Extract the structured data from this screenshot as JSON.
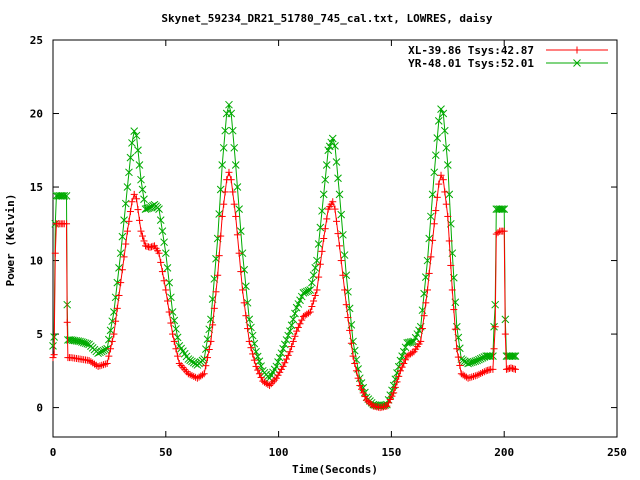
{
  "chart_data": {
    "type": "line",
    "title": "Skynet_59234_DR21_51780_745_cal.txt, LOWRES, daisy",
    "xlabel": "Time(Seconds)",
    "ylabel": "Power (Kelvin)",
    "xlim": [
      0,
      250
    ],
    "ylim": [
      -2,
      25
    ],
    "xticks": [
      0,
      50,
      100,
      150,
      200,
      250
    ],
    "yticks": [
      0,
      5,
      10,
      15,
      20,
      25
    ],
    "grid": false,
    "legend_position": "top-right",
    "series": [
      {
        "name": "XL-39.86 Tsys:42.87",
        "color": "#ff0000",
        "marker": "plus",
        "points": [
          [
            0,
            3.4
          ],
          [
            0.5,
            3.6
          ],
          [
            1,
            10.5
          ],
          [
            1.5,
            12.5
          ],
          [
            3,
            12.5
          ],
          [
            5,
            12.5
          ],
          [
            6,
            12.5
          ],
          [
            6.3,
            5.8
          ],
          [
            6.6,
            3.4
          ],
          [
            8,
            3.4
          ],
          [
            12,
            3.3
          ],
          [
            16,
            3.2
          ],
          [
            20,
            2.8
          ],
          [
            24,
            3.0
          ],
          [
            27,
            5.0
          ],
          [
            30,
            8.5
          ],
          [
            33,
            12.0
          ],
          [
            35,
            14.0
          ],
          [
            36,
            14.5
          ],
          [
            37,
            14.2
          ],
          [
            39,
            12.0
          ],
          [
            41,
            11.0
          ],
          [
            43,
            10.9
          ],
          [
            45,
            11.0
          ],
          [
            47,
            10.5
          ],
          [
            50,
            8.0
          ],
          [
            53,
            5.0
          ],
          [
            56,
            3.0
          ],
          [
            60,
            2.3
          ],
          [
            64,
            2.0
          ],
          [
            67,
            2.3
          ],
          [
            70,
            4.5
          ],
          [
            73,
            9.0
          ],
          [
            75,
            13.0
          ],
          [
            77,
            15.5
          ],
          [
            78,
            16.0
          ],
          [
            79,
            15.5
          ],
          [
            81,
            13.0
          ],
          [
            84,
            8.0
          ],
          [
            87,
            4.5
          ],
          [
            90,
            2.8
          ],
          [
            93,
            1.8
          ],
          [
            96,
            1.5
          ],
          [
            99,
            2.0
          ],
          [
            102,
            2.8
          ],
          [
            105,
            3.8
          ],
          [
            108,
            5.2
          ],
          [
            111,
            6.2
          ],
          [
            114,
            6.5
          ],
          [
            117,
            8.0
          ],
          [
            120,
            11.5
          ],
          [
            122,
            13.5
          ],
          [
            124,
            14.0
          ],
          [
            125,
            13.5
          ],
          [
            127,
            11.0
          ],
          [
            130,
            7.0
          ],
          [
            133,
            3.5
          ],
          [
            136,
            1.5
          ],
          [
            139,
            0.5
          ],
          [
            142,
            0.1
          ],
          [
            145,
            0.0
          ],
          [
            148,
            0.1
          ],
          [
            151,
            1.0
          ],
          [
            154,
            2.5
          ],
          [
            157,
            3.5
          ],
          [
            160,
            3.8
          ],
          [
            163,
            4.5
          ],
          [
            166,
            8.0
          ],
          [
            169,
            12.5
          ],
          [
            171,
            15.2
          ],
          [
            172,
            15.8
          ],
          [
            173,
            15.5
          ],
          [
            175,
            13.0
          ],
          [
            177,
            8.0
          ],
          [
            179,
            4.0
          ],
          [
            181,
            2.3
          ],
          [
            184,
            2.0
          ],
          [
            188,
            2.2
          ],
          [
            192,
            2.5
          ],
          [
            194,
            2.6
          ],
          [
            195,
            2.6
          ],
          [
            195.5,
            4.0
          ],
          [
            196,
            5.5
          ],
          [
            196.5,
            11.8
          ],
          [
            198,
            12.0
          ],
          [
            200,
            12.0
          ],
          [
            200.5,
            5.0
          ],
          [
            201,
            2.6
          ],
          [
            203,
            2.7
          ],
          [
            205,
            2.6
          ]
        ]
      },
      {
        "name": "YR-48.01 Tsys:52.01",
        "color": "#00aa00",
        "marker": "cross",
        "points": [
          [
            0,
            4.2
          ],
          [
            0.5,
            4.8
          ],
          [
            1,
            12.5
          ],
          [
            1.5,
            14.4
          ],
          [
            3,
            14.4
          ],
          [
            5,
            14.4
          ],
          [
            6,
            14.4
          ],
          [
            6.3,
            7.0
          ],
          [
            6.6,
            4.6
          ],
          [
            8,
            4.6
          ],
          [
            12,
            4.5
          ],
          [
            16,
            4.3
          ],
          [
            20,
            3.7
          ],
          [
            24,
            4.0
          ],
          [
            27,
            6.5
          ],
          [
            30,
            10.5
          ],
          [
            33,
            15.0
          ],
          [
            35,
            18.0
          ],
          [
            36,
            18.8
          ],
          [
            37,
            18.5
          ],
          [
            39,
            15.5
          ],
          [
            41,
            13.5
          ],
          [
            43,
            13.6
          ],
          [
            45,
            13.8
          ],
          [
            47,
            13.5
          ],
          [
            50,
            10.5
          ],
          [
            53,
            6.5
          ],
          [
            56,
            4.2
          ],
          [
            60,
            3.3
          ],
          [
            64,
            2.9
          ],
          [
            67,
            3.3
          ],
          [
            70,
            6.0
          ],
          [
            73,
            11.5
          ],
          [
            75,
            16.5
          ],
          [
            77,
            20.0
          ],
          [
            78,
            20.6
          ],
          [
            79,
            20.0
          ],
          [
            81,
            16.5
          ],
          [
            84,
            10.5
          ],
          [
            87,
            6.0
          ],
          [
            90,
            3.8
          ],
          [
            93,
            2.5
          ],
          [
            96,
            2.0
          ],
          [
            99,
            2.8
          ],
          [
            102,
            4.0
          ],
          [
            105,
            5.2
          ],
          [
            108,
            6.8
          ],
          [
            111,
            7.8
          ],
          [
            114,
            8.0
          ],
          [
            117,
            10.0
          ],
          [
            120,
            14.5
          ],
          [
            122,
            17.5
          ],
          [
            124,
            18.3
          ],
          [
            125,
            17.8
          ],
          [
            127,
            14.5
          ],
          [
            130,
            9.0
          ],
          [
            133,
            4.5
          ],
          [
            136,
            2.0
          ],
          [
            139,
            0.7
          ],
          [
            142,
            0.2
          ],
          [
            145,
            0.1
          ],
          [
            148,
            0.2
          ],
          [
            151,
            1.5
          ],
          [
            154,
            3.2
          ],
          [
            157,
            4.4
          ],
          [
            160,
            4.5
          ],
          [
            163,
            5.5
          ],
          [
            166,
            10.0
          ],
          [
            169,
            16.0
          ],
          [
            171,
            19.5
          ],
          [
            172,
            20.3
          ],
          [
            173,
            20.0
          ],
          [
            175,
            16.5
          ],
          [
            177,
            10.5
          ],
          [
            179,
            5.5
          ],
          [
            181,
            3.3
          ],
          [
            184,
            3.0
          ],
          [
            188,
            3.2
          ],
          [
            192,
            3.5
          ],
          [
            194,
            3.5
          ],
          [
            195,
            3.5
          ],
          [
            195.5,
            5.5
          ],
          [
            196,
            7.0
          ],
          [
            196.5,
            13.5
          ],
          [
            198,
            13.5
          ],
          [
            200,
            13.5
          ],
          [
            200.5,
            6.0
          ],
          [
            201,
            3.5
          ],
          [
            203,
            3.5
          ],
          [
            205,
            3.5
          ]
        ]
      }
    ]
  }
}
